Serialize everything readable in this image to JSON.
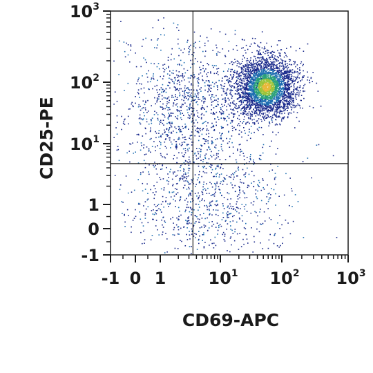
{
  "chart_data": {
    "type": "scatter",
    "subtype": "flow-cytometry-density-dot-plot",
    "xlabel": "CD69-APC",
    "ylabel": "CD25-PE",
    "x_scale": "biexponential",
    "y_scale": "biexponential",
    "xlim": [
      -1,
      1000
    ],
    "ylim": [
      -1,
      1000
    ],
    "x_ticks": [
      {
        "value": -1,
        "base": "-1",
        "exp": ""
      },
      {
        "value": 0,
        "base": "0",
        "exp": ""
      },
      {
        "value": 1,
        "base": "1",
        "exp": ""
      },
      {
        "value": 10,
        "base": "10",
        "exp": "1"
      },
      {
        "value": 100,
        "base": "10",
        "exp": "2"
      },
      {
        "value": 1000,
        "base": "10",
        "exp": "3"
      }
    ],
    "y_ticks": [
      {
        "value": -1,
        "base": "-1",
        "exp": ""
      },
      {
        "value": 0,
        "base": "0",
        "exp": ""
      },
      {
        "value": 1,
        "base": "1",
        "exp": ""
      },
      {
        "value": 10,
        "base": "10",
        "exp": "1"
      },
      {
        "value": 100,
        "base": "10",
        "exp": "2"
      },
      {
        "value": 1000,
        "base": "10",
        "exp": "3"
      }
    ],
    "quadrant_gate": {
      "x": 3.5,
      "y": 4.7
    },
    "populations": [
      {
        "center": [
          55,
          85
        ],
        "spread_decades": [
          0.25,
          0.25
        ],
        "relative_size": 0.62
      },
      {
        "center": [
          3,
          40
        ],
        "spread_decades": [
          0.55,
          0.55
        ],
        "relative_size": 0.22
      },
      {
        "center": [
          5,
          1.2
        ],
        "spread_decades": [
          0.7,
          0.5
        ],
        "relative_size": 0.16
      }
    ],
    "density_colors": [
      "#1a2a8c",
      "#1f6fb2",
      "#2aa07a",
      "#9bc43a",
      "#e8b83a"
    ],
    "grid": false,
    "legend": "none"
  }
}
